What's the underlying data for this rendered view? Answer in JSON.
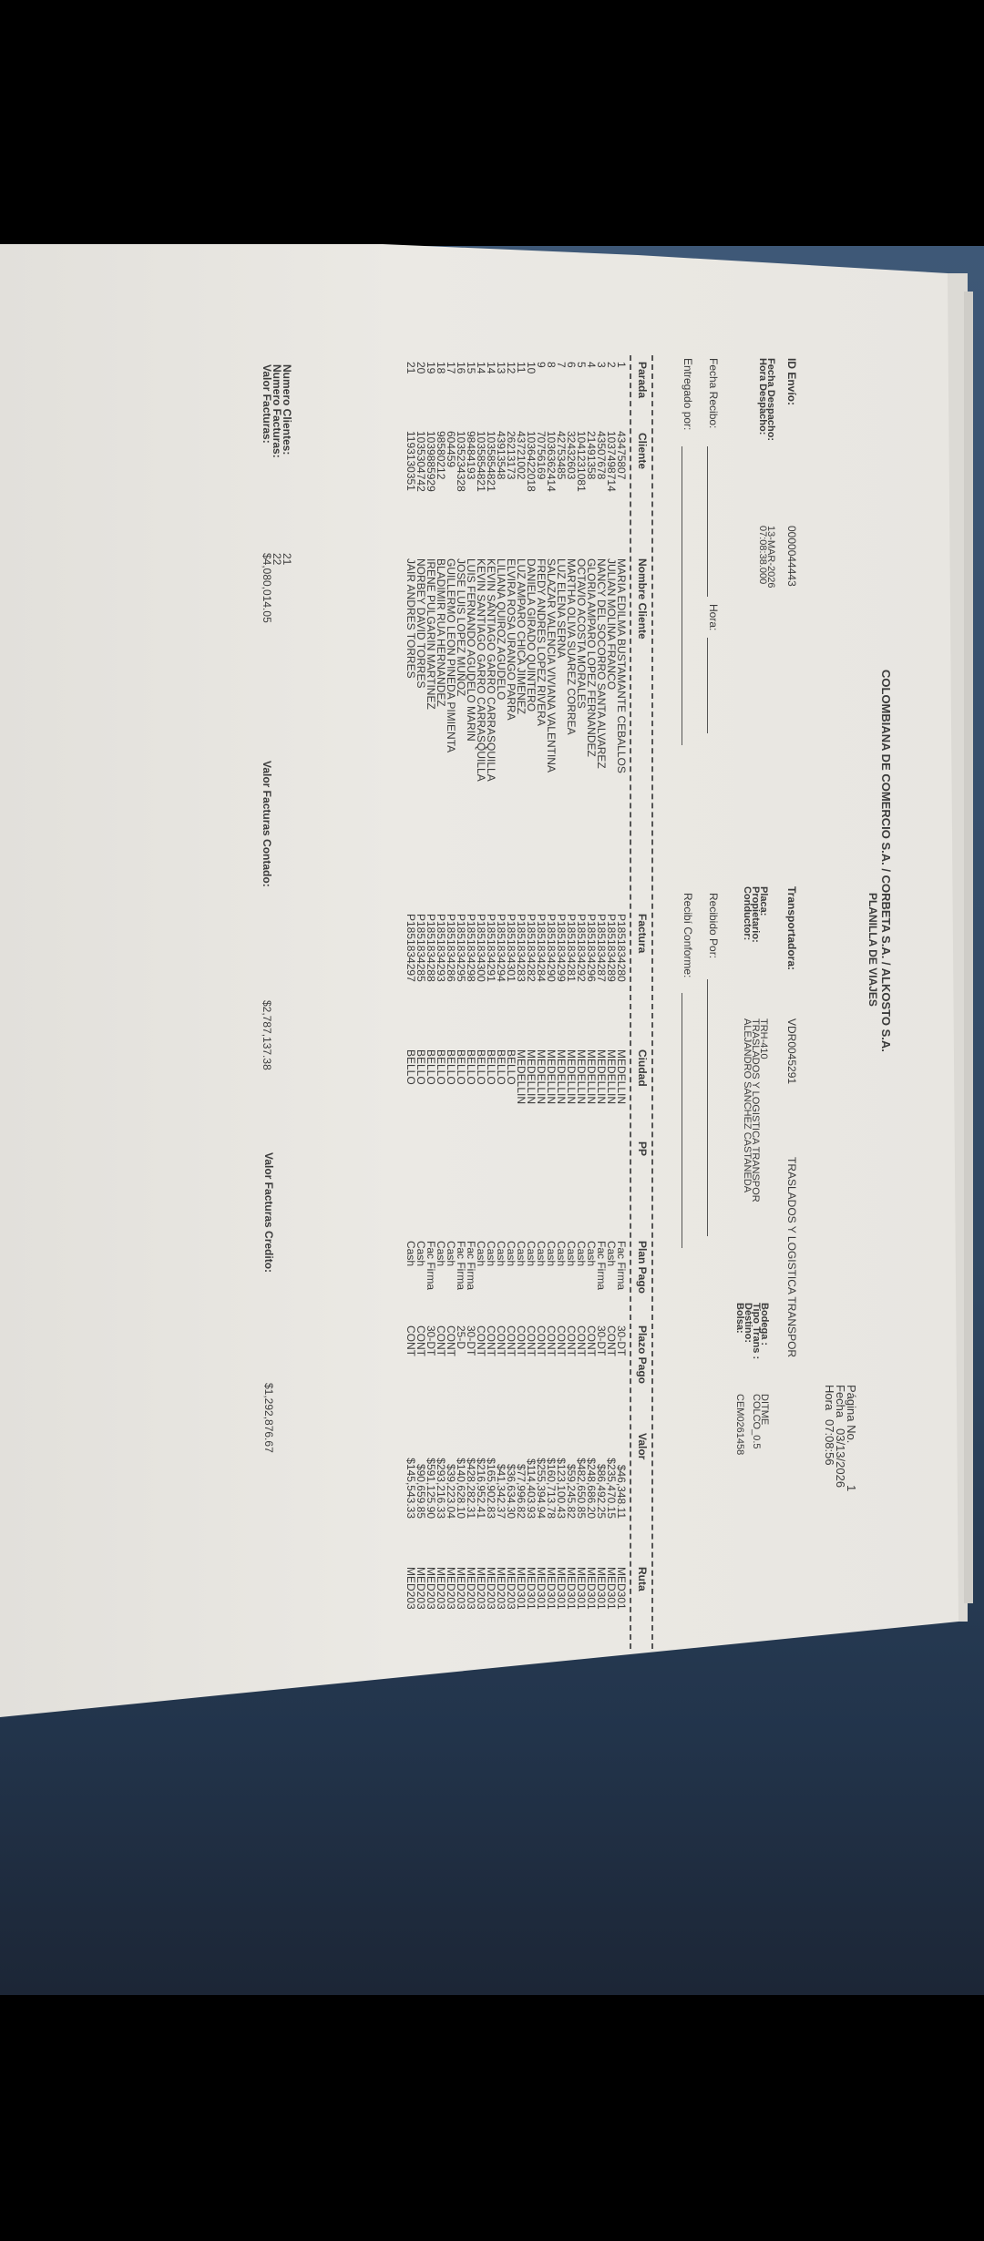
{
  "header": {
    "title": "COLOMBIANA DE COMERCIO S.A. / CORBETA S.A. / ALKOSTO S.A.",
    "subtitle": "PLANILLA DE VIAJES",
    "pagina_label": "Página No.",
    "pagina_value": "1",
    "fecha_label": "Fecha",
    "fecha_value": "03/13/2026",
    "hora_label": "Hora",
    "hora_value": "07:08:56"
  },
  "envio": {
    "id_label": "ID Envío:",
    "id_value": "0000044443",
    "fecha_despacho_label": "Fecha Despacho:",
    "fecha_despacho_value": "13-MAR-2026",
    "hora_despacho_label": "Hora Despacho:",
    "hora_despacho_value": "07:08:38.000"
  },
  "transporte": {
    "transportadora_label": "Transportadora:",
    "transportadora_code": "VDR0045291",
    "transportadora_name": "TRASLADOS Y LOGISTICA TRANSPOR",
    "placa_label": "Placa:",
    "placa_value": "TRH-410",
    "propietario_label": "Propietario:",
    "propietario_value": "TRASLADOS Y LOGISTICA TRANSPOR",
    "conductor_label": "Conductor:",
    "conductor_value": "ALEJANDRO SANCHEZ CASTANEDA"
  },
  "bodega": {
    "bodega_label": "Bodega :",
    "bodega_value": "DITME",
    "tipo_label": "Tipo Trans :",
    "tipo_value": "COLCO_0.5",
    "destino_label": "Destino:",
    "destino_value": "",
    "bolsa_label": "Bolsa:",
    "bolsa_value": "CEM0261458"
  },
  "firmas": {
    "fecha_recibo_label": "Fecha Recibo:",
    "hora_label": "Hora:",
    "entregado_label": "Entregado por:",
    "recibido_label": "Recibido Por:",
    "conforme_label": "Recibí Conforme:"
  },
  "table": {
    "columns": {
      "parada": "Parada",
      "cliente": "Cliente",
      "nombre": "Nombre Cliente",
      "factura": "Factura",
      "ciudad": "Ciudad",
      "pp": "PP",
      "plan_pago": "Plan Pago",
      "plazo_pago": "Plazo Pago",
      "valor": "Valor",
      "ruta": "Ruta"
    },
    "rows": [
      {
        "parada": "1",
        "cliente": "43475807",
        "nombre": "MARIA EDILMA BUSTAMANTE CEBALLOS",
        "factura": "P1851834280",
        "ciudad": "MEDELLIN",
        "pp": "",
        "plan_pago": "Fac Firma",
        "plazo_pago": "30-DT",
        "valor": "$46,348.11",
        "ruta": "MED301"
      },
      {
        "parada": "2",
        "cliente": "1037498714",
        "nombre": "JULIAN MOLINA FRANCO",
        "factura": "P1851834289",
        "ciudad": "MEDELLIN",
        "pp": "",
        "plan_pago": "Cash",
        "plazo_pago": "CONT",
        "valor": "$235,470.15",
        "ruta": "MED301"
      },
      {
        "parada": "3",
        "cliente": "43507678",
        "nombre": "NANCY DEL SOCORRO SANTA ALVAREZ",
        "factura": "P1851834287",
        "ciudad": "MEDELLIN",
        "pp": "",
        "plan_pago": "Fac Firma",
        "plazo_pago": "30-DT",
        "valor": "$86,492.25",
        "ruta": "MED301"
      },
      {
        "parada": "4",
        "cliente": "21491358",
        "nombre": "GLORIA AMPARO LOPEZ FERNANDEZ",
        "factura": "P1851834296",
        "ciudad": "MEDELLIN",
        "pp": "",
        "plan_pago": "Cash",
        "plazo_pago": "CONT",
        "valor": "$248,686.20",
        "ruta": "MED301"
      },
      {
        "parada": "5",
        "cliente": "1041231081",
        "nombre": "OCTAVIO ACOSTA MORALES",
        "factura": "P1851834292",
        "ciudad": "MEDELLIN",
        "pp": "",
        "plan_pago": "Cash",
        "plazo_pago": "CONT",
        "valor": "$482,650.85",
        "ruta": "MED301"
      },
      {
        "parada": "6",
        "cliente": "32432603",
        "nombre": "MARTHA OLIVA SUAREZ CORREA",
        "factura": "P1851834281",
        "ciudad": "MEDELLIN",
        "pp": "",
        "plan_pago": "Cash",
        "plazo_pago": "CONT",
        "valor": "$59,245.82",
        "ruta": "MED301"
      },
      {
        "parada": "7",
        "cliente": "42753485",
        "nombre": "LUZ ELENA SERNA",
        "factura": "P1851834299",
        "ciudad": "MEDELLIN",
        "pp": "",
        "plan_pago": "Cash",
        "plazo_pago": "CONT",
        "valor": "$123,100.43",
        "ruta": "MED301"
      },
      {
        "parada": "8",
        "cliente": "1036362414",
        "nombre": "SALAZAR VALENCIA VIVIANA VALENTINA",
        "factura": "P1851834290",
        "ciudad": "MEDELLIN",
        "pp": "",
        "plan_pago": "Cash",
        "plazo_pago": "CONT",
        "valor": "$160,713.78",
        "ruta": "MED301"
      },
      {
        "parada": "9",
        "cliente": "70756169",
        "nombre": "FREDY ANDRES LOPEZ RIVERA",
        "factura": "P1851834284",
        "ciudad": "MEDELLIN",
        "pp": "",
        "plan_pago": "Cash",
        "plazo_pago": "CONT",
        "valor": "$255,394.94",
        "ruta": "MED301"
      },
      {
        "parada": "10",
        "cliente": "1036422018",
        "nombre": "DANIELA GIRADO QUINTERO",
        "factura": "P1851834282",
        "ciudad": "MEDELLIN",
        "pp": "",
        "plan_pago": "Cash",
        "plazo_pago": "CONT",
        "valor": "$114,403.93",
        "ruta": "MED301"
      },
      {
        "parada": "11",
        "cliente": "43721002",
        "nombre": "LUZ AMPARO CHICA JIMENEZ",
        "factura": "P1851834283",
        "ciudad": "MEDELLIN",
        "pp": "",
        "plan_pago": "Cash",
        "plazo_pago": "CONT",
        "valor": "$77,996.82",
        "ruta": "MED301"
      },
      {
        "parada": "12",
        "cliente": "26213173",
        "nombre": "ELVIRA ROSA URANGO PARRA",
        "factura": "P1851834301",
        "ciudad": "BELLO",
        "pp": "",
        "plan_pago": "Cash",
        "plazo_pago": "CONT",
        "valor": "$36,634.30",
        "ruta": "MED203"
      },
      {
        "parada": "13",
        "cliente": "43913548",
        "nombre": "LILIANA QUIROZ AGUDELO",
        "factura": "P1851834294",
        "ciudad": "BELLO",
        "pp": "",
        "plan_pago": "Cash",
        "plazo_pago": "CONT",
        "valor": "$41,342.37",
        "ruta": "MED203"
      },
      {
        "parada": "14",
        "cliente": "1035854821",
        "nombre": "KEVIN SANTIAGO GARRO CARRASQUILLA",
        "factura": "P1851834291",
        "ciudad": "BELLO",
        "pp": "",
        "plan_pago": "Cash",
        "plazo_pago": "CONT",
        "valor": "$165,902.83",
        "ruta": "MED203"
      },
      {
        "parada": "14",
        "cliente": "1035854821",
        "nombre": "KEVIN SANTIAGO GARRO CARRASQUILLA",
        "factura": "P1851834300",
        "ciudad": "BELLO",
        "pp": "",
        "plan_pago": "Cash",
        "plazo_pago": "CONT",
        "valor": "$216,952.41",
        "ruta": "MED203"
      },
      {
        "parada": "15",
        "cliente": "98484193",
        "nombre": "LUIS FERNANDO AGUDELO MARIN",
        "factura": "P1851834298",
        "ciudad": "BELLO",
        "pp": "",
        "plan_pago": "Fac Firma",
        "plazo_pago": "30-DT",
        "valor": "$428,282.31",
        "ruta": "MED203"
      },
      {
        "parada": "16",
        "cliente": "1035234328",
        "nombre": "JOSE LUIS LOPEZ MUÑOZ",
        "factura": "P1851834295",
        "ciudad": "BELLO",
        "pp": "",
        "plan_pago": "Fac Firma",
        "plazo_pago": "25-D",
        "valor": "$140,628.10",
        "ruta": "MED203"
      },
      {
        "parada": "17",
        "cliente": "604459",
        "nombre": "GUILLERMO LEON PINEDA PIMIENTA",
        "factura": "P1851834286",
        "ciudad": "BELLO",
        "pp": "",
        "plan_pago": "Cash",
        "plazo_pago": "CONT",
        "valor": "$39,223.04",
        "ruta": "MED203"
      },
      {
        "parada": "18",
        "cliente": "98580212",
        "nombre": "BLADIMIR RUA HERNANDEZ",
        "factura": "P1851834293",
        "ciudad": "BELLO",
        "pp": "",
        "plan_pago": "Cash",
        "plazo_pago": "CONT",
        "valor": "$293,216.33",
        "ruta": "MED203"
      },
      {
        "parada": "19",
        "cliente": "1039885929",
        "nombre": "IRENE PULGARIN MARTINEZ",
        "factura": "P1851834288",
        "ciudad": "BELLO",
        "pp": "",
        "plan_pago": "Fac Firma",
        "plazo_pago": "30-DT",
        "valor": "$591,125.90",
        "ruta": "MED203"
      },
      {
        "parada": "20",
        "cliente": "1035304742",
        "nombre": "NORBEY DAVID TORRES",
        "factura": "P1851834285",
        "ciudad": "BELLO",
        "pp": "",
        "plan_pago": "Cash",
        "plazo_pago": "CONT",
        "valor": "$90,659.85",
        "ruta": "MED203"
      },
      {
        "parada": "21",
        "cliente": "1193130351",
        "nombre": "JAIR ANDRES TORRES",
        "factura": "P1851834297",
        "ciudad": "BELLO",
        "pp": "",
        "plan_pago": "Cash",
        "plazo_pago": "CONT",
        "valor": "$145,543.33",
        "ruta": "MED203"
      }
    ]
  },
  "totales": {
    "clientes_label": "Numero Clientes:",
    "clientes_value": "21",
    "facturas_label": "Numero Facturas:",
    "facturas_value": "22",
    "valor_label": "Valor Facturas:",
    "valor_value": "$4,080,014.05",
    "contado_label": "Valor Facturas Contado:",
    "contado_value": "$2,787,137.38",
    "credito_label": "Valor Facturas Credito:",
    "credito_value": "$1,292,876.67"
  },
  "colors": {
    "paper": "#e9e7e2",
    "ink": "#3b3b3b",
    "surface": "#2f4762",
    "bezel": "#000000"
  }
}
